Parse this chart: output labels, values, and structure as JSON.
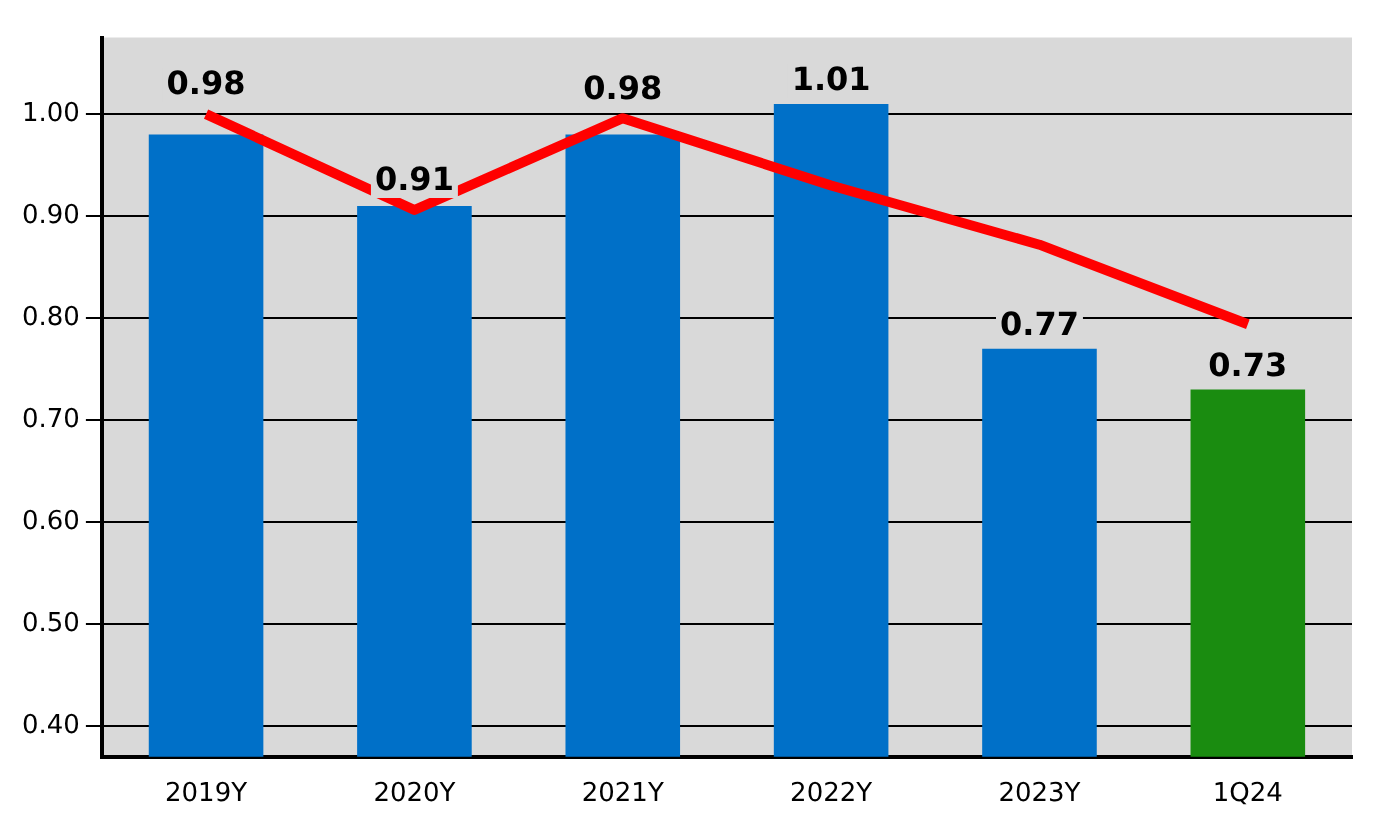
{
  "chart_data": {
    "type": "bar",
    "categories": [
      "2019Y",
      "2020Y",
      "2021Y",
      "2022Y",
      "2023Y",
      "1Q24"
    ],
    "series": [
      {
        "colors": [
          "#0070c8",
          "#0070c8",
          "#0070c8",
          "#0070c8",
          "#0070c8",
          "#1a8c10"
        ],
        "values": [
          0.98,
          0.91,
          0.98,
          1.01,
          0.77,
          0.73
        ],
        "data_labels": true
      },
      {
        "type": "line",
        "color": "#ff0000",
        "values": [
          1.0,
          0.906,
          0.996,
          0.93,
          0.872,
          0.794
        ],
        "marker": "none",
        "line_style": "solid"
      }
    ],
    "ylim": [
      0.37,
      1.075
    ],
    "yticks": [
      {
        "value": 0.4,
        "label": "0.40"
      },
      {
        "value": 0.5,
        "label": "0.50"
      },
      {
        "value": 0.6,
        "label": "0.60"
      },
      {
        "value": 0.7,
        "label": "0.70"
      },
      {
        "value": 0.8,
        "label": "0.80"
      },
      {
        "value": 0.9,
        "label": "0.90"
      },
      {
        "value": 1.0,
        "label": "1.00"
      }
    ],
    "grid": "y",
    "legend": false
  }
}
